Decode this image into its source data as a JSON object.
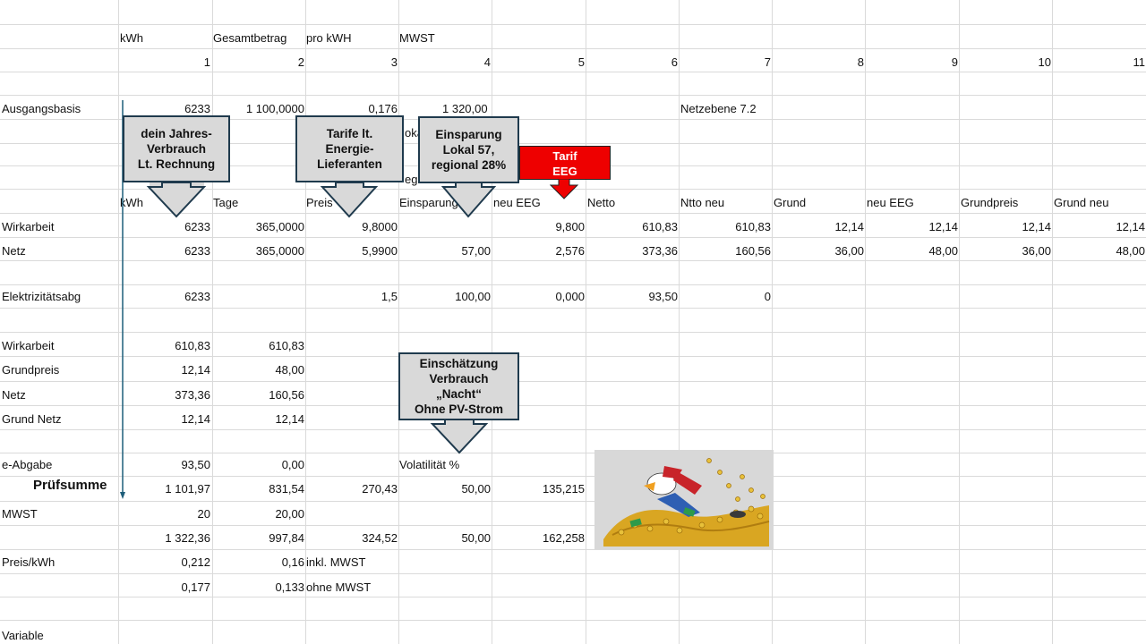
{
  "headers_top": {
    "kwh": "kWh",
    "gesamt": "Gesamtbetrag",
    "prokwh": "pro kWH",
    "mwst": "MWST"
  },
  "col_numbers": [
    "1",
    "2",
    "3",
    "4",
    "5",
    "6",
    "7",
    "8",
    "9",
    "10",
    "11"
  ],
  "ausgangsbasis": {
    "label": "Ausgangsbasis",
    "kwh": "6233",
    "gesamt": "1 100,0000",
    "prokwh": "0,176",
    "mwst": "1 320,00",
    "netz": "Netzebene 7.2"
  },
  "hidden_fragments": {
    "loka": "oka",
    "regi": "egi"
  },
  "headers_mid": {
    "kwh": "kWh",
    "tage": "Tage",
    "preis": "Preis",
    "einsparung": "Einsparung",
    "neueeg": "neu EEG",
    "netto": "Netto",
    "nttoneu": "Ntto neu",
    "grund": "Grund",
    "neueeg2": "neu EEG",
    "grundpreis": "Grundpreis",
    "grundneu": "Grund neu"
  },
  "wirkarbeit_row": {
    "label": "Wirkarbeit",
    "c1": "6233",
    "c2": "365,0000",
    "c3": "9,8000",
    "c5": "9,800",
    "c6": "610,83",
    "c7": "610,83",
    "c8": "12,14",
    "c9": "12,14",
    "c10": "12,14",
    "c11": "12,14"
  },
  "netz_row": {
    "label": "Netz",
    "c1": "6233",
    "c2": "365,0000",
    "c3": "5,9900",
    "c4": "57,00",
    "c5": "2,576",
    "c6": "373,36",
    "c7": "160,56",
    "c8": "36,00",
    "c9": "48,00",
    "c10": "36,00",
    "c11": "48,00"
  },
  "elek_row": {
    "label": "Elektrizitätsabg",
    "c1": "6233",
    "c3": "1,5",
    "c4": "100,00",
    "c5": "0,000",
    "c6": "93,50",
    "c7": "0"
  },
  "summary": [
    {
      "label": "Wirkarbeit",
      "c1": "610,83",
      "c2": "610,83"
    },
    {
      "label": "Grundpreis",
      "c1": "12,14",
      "c2": "48,00"
    },
    {
      "label": "Netz",
      "c1": "373,36",
      "c2": "160,56"
    },
    {
      "label": "Grund Netz",
      "c1": "12,14",
      "c2": "12,14"
    }
  ],
  "eabgabe": {
    "label": "e-Abgabe",
    "c1": "93,50",
    "c2": "0,00",
    "volatil": "Volatilität %"
  },
  "pruefsumme": {
    "label": "Prüfsumme",
    "c1": "1 101,97",
    "c2": "831,54",
    "c3": "270,43",
    "c4": "50,00",
    "c5": "135,215"
  },
  "mwst_row": {
    "label": "MWST",
    "c1": "20",
    "c2": "20,00"
  },
  "total_row": {
    "c1": "1 322,36",
    "c2": "997,84",
    "c3": "324,52",
    "c4": "50,00",
    "c5": "162,258"
  },
  "preis_row": {
    "label": "Preis/kWh",
    "c1": "0,212",
    "c2": "0,16",
    "note": "inkl. MWST"
  },
  "preis_row2": {
    "c1": "0,177",
    "c2": "0,133",
    "note": "ohne MWST"
  },
  "variable_label": "Variable",
  "callouts": {
    "jahresverbrauch": "dein Jahres-\nVerbrauch\nLt. Rechnung",
    "tarife": "Tarife lt.\nEnergie-\nLieferanten",
    "einsparung": "Einsparung\nLokal 57,\nregional 28%",
    "tarif_eeg": "Tarif\nEEG",
    "nacht": "Einschätzung\nVerbrauch\n„Nacht“\nOhne PV-Strom"
  },
  "colors": {
    "grid": "#dadada",
    "callout_fill": "#d9d9d9",
    "callout_border": "#1f3a4d",
    "tarif_red": "#ee0000",
    "marker_line": "#1f5e7a"
  }
}
